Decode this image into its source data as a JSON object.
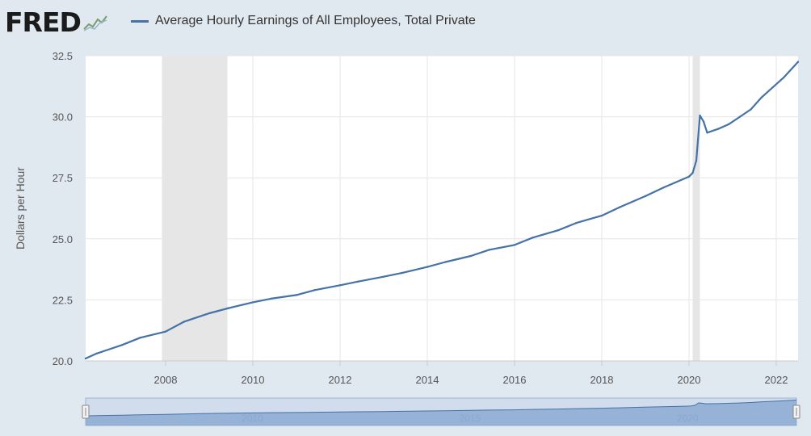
{
  "brand": {
    "logo_text": "FRED",
    "logo_icon": "line-chart-icon"
  },
  "colors": {
    "background": "#e1e9f0",
    "plot_bg": "#ffffff",
    "series": "#4572a7",
    "recession": "#e6e6e6",
    "grid": "#e6e6e6",
    "navigator": "#d1dcec"
  },
  "chart_data": {
    "type": "line",
    "title": "",
    "legend": [
      "Average Hourly Earnings of All Employees, Total Private"
    ],
    "ylabel": "Dollars per Hour",
    "xlabel": "",
    "ylim": [
      20.0,
      32.5
    ],
    "xlim": [
      "2006-03",
      "2022-07"
    ],
    "yticks": [
      "20.0",
      "22.5",
      "25.0",
      "27.5",
      "30.0",
      "32.5"
    ],
    "xticks": [
      "2008",
      "2010",
      "2012",
      "2014",
      "2016",
      "2018",
      "2020",
      "2022"
    ],
    "grid": true,
    "legend_position": "top",
    "recessions": [
      {
        "start": "2007-12",
        "end": "2009-06"
      },
      {
        "start": "2020-02",
        "end": "2020-04"
      }
    ],
    "series": [
      {
        "name": "Average Hourly Earnings of All Employees, Total Private",
        "x": [
          "2006-03",
          "2006-06",
          "2007-01",
          "2007-06",
          "2008-01",
          "2008-06",
          "2009-01",
          "2009-06",
          "2010-01",
          "2010-06",
          "2011-01",
          "2011-06",
          "2012-01",
          "2012-06",
          "2013-01",
          "2013-06",
          "2014-01",
          "2014-06",
          "2015-01",
          "2015-06",
          "2016-01",
          "2016-06",
          "2017-01",
          "2017-06",
          "2018-01",
          "2018-06",
          "2019-01",
          "2019-06",
          "2020-01",
          "2020-02",
          "2020-03",
          "2020-04",
          "2020-05",
          "2020-06",
          "2020-09",
          "2020-12",
          "2021-03",
          "2021-06",
          "2021-09",
          "2021-12",
          "2022-03",
          "2022-07"
        ],
        "values": [
          20.1,
          20.3,
          20.65,
          20.95,
          21.2,
          21.6,
          21.95,
          22.15,
          22.4,
          22.55,
          22.7,
          22.9,
          23.1,
          23.25,
          23.45,
          23.6,
          23.85,
          24.05,
          24.3,
          24.55,
          24.75,
          25.05,
          25.35,
          25.65,
          25.95,
          26.3,
          26.75,
          27.1,
          27.55,
          27.7,
          28.2,
          30.05,
          29.8,
          29.35,
          29.5,
          29.7,
          30.0,
          30.3,
          30.8,
          31.2,
          31.6,
          32.25
        ]
      }
    ],
    "navigator_labels": [
      "2010",
      "2015",
      "2020"
    ]
  }
}
